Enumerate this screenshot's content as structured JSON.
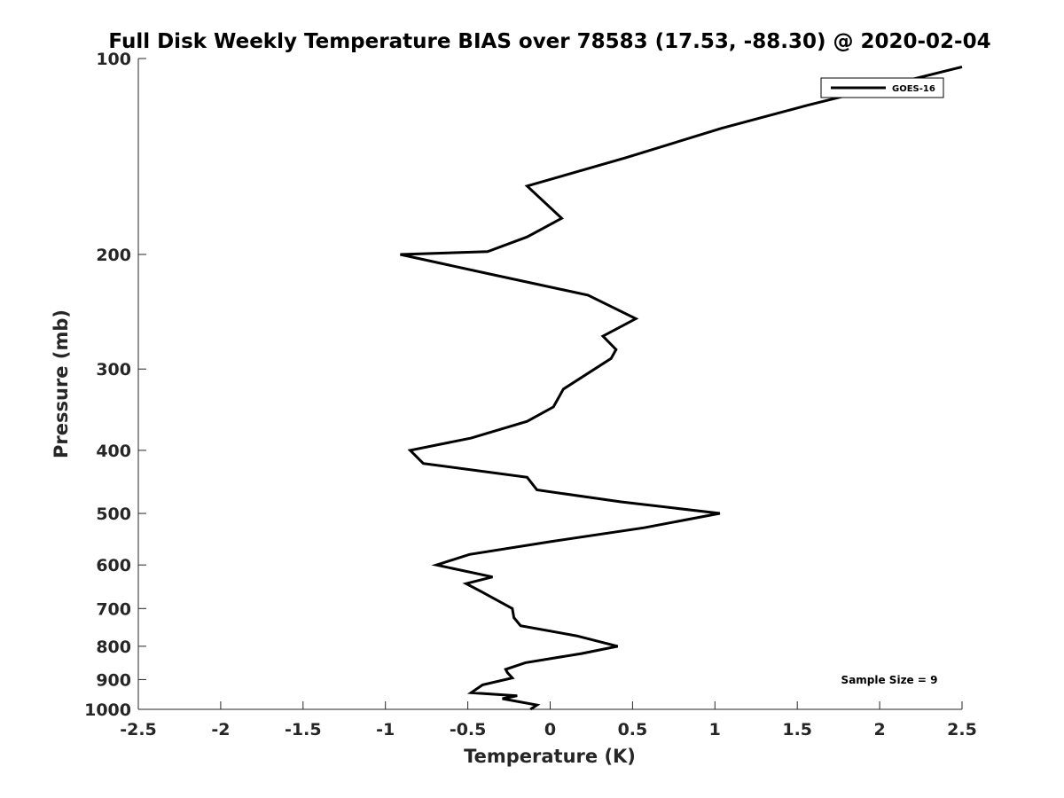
{
  "chart_data": {
    "type": "line",
    "title": "Full Disk Weekly Temperature BIAS over 78583 (17.53, -88.30) @ 2020-02-04",
    "xlabel": "Temperature (K)",
    "ylabel": "Pressure (mb)",
    "xlim": [
      -2.5,
      2.5
    ],
    "ylim": [
      1000,
      100
    ],
    "y_scale": "log",
    "y_reversed": true,
    "x_ticks": [
      "-2.5",
      "-2",
      "-1.5",
      "-1",
      "-0.5",
      "0",
      "0.5",
      "1",
      "1.5",
      "2",
      "2.5"
    ],
    "y_ticks": [
      "100",
      "200",
      "300",
      "400",
      "500",
      "600",
      "700",
      "800",
      "900",
      "1000"
    ],
    "grid": false,
    "legend_position": "top-right",
    "series": [
      {
        "name": "GOES-16",
        "color": "#000000",
        "x": [
          2.5,
          1.56,
          1.04,
          0.46,
          -0.14,
          0.07,
          -0.14,
          -0.38,
          -0.91,
          -0.38,
          0.23,
          0.52,
          0.32,
          0.4,
          0.37,
          0.08,
          0.02,
          -0.14,
          -0.48,
          -0.85,
          -0.77,
          -0.14,
          -0.08,
          0.43,
          1.03,
          0.57,
          0.01,
          -0.49,
          -0.69,
          -0.35,
          -0.51,
          -0.42,
          -0.23,
          -0.22,
          -0.18,
          0.16,
          0.41,
          0.19,
          -0.15,
          -0.27,
          -0.26,
          -0.23,
          -0.41,
          -0.48,
          -0.2,
          -0.29,
          -0.08,
          -0.12
        ],
        "y": [
          103,
          118,
          128,
          142,
          157,
          176,
          188,
          198,
          200,
          214,
          231,
          251,
          267,
          280,
          289,
          322,
          343,
          361,
          383,
          400,
          419,
          440,
          460,
          480,
          500,
          526,
          552,
          578,
          600,
          626,
          641,
          659,
          700,
          723,
          744,
          771,
          800,
          821,
          848,
          868,
          878,
          895,
          917,
          943,
          953,
          963,
          985,
          1000
        ]
      }
    ]
  },
  "legend": {
    "label": "GOES-16"
  },
  "annotation": {
    "text": "Sample Size = 9"
  }
}
